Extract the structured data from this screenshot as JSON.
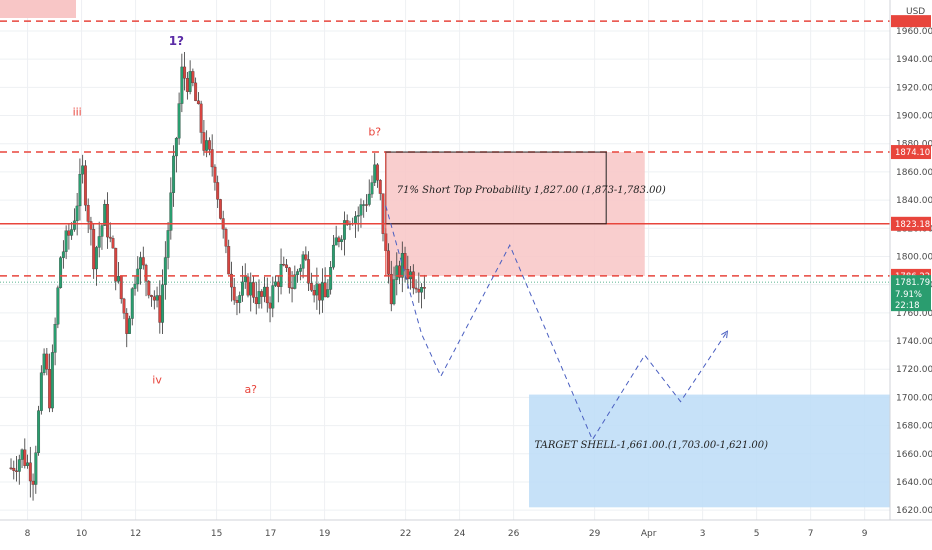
{
  "chart_data": {
    "type": "candlestick",
    "currency": "USD",
    "y_axis": {
      "ticks": [
        "1960.00",
        "1940.00",
        "1920.00",
        "1900.00",
        "1880.00",
        "1860.00",
        "1840.00",
        "1820.00",
        "1800.00",
        "1780.00",
        "1760.00",
        "1740.00",
        "1720.00",
        "1700.00",
        "1680.00",
        "1660.00",
        "1640.00",
        "1620.00"
      ],
      "ylim": [
        1613,
        1982
      ]
    },
    "x_axis": {
      "ticks": [
        {
          "label": "8",
          "pos": 3.0
        },
        {
          "label": "10",
          "pos": 12.8
        },
        {
          "label": "12",
          "pos": 22.6
        },
        {
          "label": "15",
          "pos": 37.3
        },
        {
          "label": "17",
          "pos": 47.1
        },
        {
          "label": "19",
          "pos": 56.9
        },
        {
          "label": "22",
          "pos": 71.6
        },
        {
          "label": "24",
          "pos": 81.4
        },
        {
          "label": "26",
          "pos": 91.2
        },
        {
          "label": "29",
          "pos": 105.9
        },
        {
          "label": "Apr",
          "pos": 115.7
        },
        {
          "label": "3",
          "pos": 125.5
        },
        {
          "label": "5",
          "pos": 135.3
        },
        {
          "label": "7",
          "pos": 145.1
        },
        {
          "label": "9",
          "pos": 154.9
        }
      ],
      "xlim": [
        -2,
        159.5
      ]
    },
    "price_key_points": [
      {
        "x": 0,
        "y": 1650
      },
      {
        "x": 2,
        "y": 1660
      },
      {
        "x": 4,
        "y": 1645
      },
      {
        "x": 6,
        "y": 1730
      },
      {
        "x": 7,
        "y": 1700
      },
      {
        "x": 9,
        "y": 1800
      },
      {
        "x": 11,
        "y": 1820
      },
      {
        "x": 13,
        "y": 1860
      },
      {
        "x": 15,
        "y": 1800
      },
      {
        "x": 17,
        "y": 1830
      },
      {
        "x": 19,
        "y": 1790
      },
      {
        "x": 21,
        "y": 1750
      },
      {
        "x": 23,
        "y": 1800
      },
      {
        "x": 25,
        "y": 1780
      },
      {
        "x": 27,
        "y": 1760
      },
      {
        "x": 29,
        "y": 1840
      },
      {
        "x": 31,
        "y": 1930
      },
      {
        "x": 33,
        "y": 1920
      },
      {
        "x": 35,
        "y": 1880
      },
      {
        "x": 37,
        "y": 1860
      },
      {
        "x": 39,
        "y": 1800
      },
      {
        "x": 41,
        "y": 1770
      },
      {
        "x": 43,
        "y": 1780
      },
      {
        "x": 45,
        "y": 1770
      },
      {
        "x": 47,
        "y": 1770
      },
      {
        "x": 49,
        "y": 1790
      },
      {
        "x": 51,
        "y": 1780
      },
      {
        "x": 53,
        "y": 1800
      },
      {
        "x": 55,
        "y": 1780
      },
      {
        "x": 57,
        "y": 1770
      },
      {
        "x": 59,
        "y": 1810
      },
      {
        "x": 61,
        "y": 1830
      },
      {
        "x": 63,
        "y": 1830
      },
      {
        "x": 65,
        "y": 1845
      },
      {
        "x": 66,
        "y": 1860
      },
      {
        "x": 67,
        "y": 1840
      },
      {
        "x": 68,
        "y": 1800
      },
      {
        "x": 69,
        "y": 1775
      },
      {
        "x": 71,
        "y": 1795
      },
      {
        "x": 73,
        "y": 1785
      },
      {
        "x": 75,
        "y": 1782
      }
    ],
    "current_price": "1781.79",
    "change_percent": "7.91%",
    "countdown": "22:18",
    "levels": [
      {
        "label": "1874.10",
        "value": 1874.1,
        "style": "dashed",
        "color": "#e8453c"
      },
      {
        "label": "1823.18",
        "value": 1823.18,
        "style": "solid",
        "color": "#e8453c"
      },
      {
        "label": "1786.22",
        "value": 1786.22,
        "style": "dashed",
        "color": "#e8453c"
      },
      {
        "label": "",
        "value": 1967,
        "style": "dashed",
        "color": "#e8453c"
      }
    ],
    "zones": [
      {
        "name": "short-zone",
        "x": [
          68,
          115
        ],
        "y": [
          1786.22,
          1874.1
        ],
        "color": "#f8c6c6"
      },
      {
        "name": "target-zone",
        "x": [
          94,
          159.5
        ],
        "y": [
          1622,
          1702
        ],
        "color": "#bcdcf7"
      }
    ],
    "projection_path": [
      {
        "x": 68,
        "y": 1836
      },
      {
        "x": 74.5,
        "y": 1745
      },
      {
        "x": 78,
        "y": 1715
      },
      {
        "x": 90.5,
        "y": 1808
      },
      {
        "x": 105.5,
        "y": 1670
      },
      {
        "x": 115,
        "y": 1730
      },
      {
        "x": 121.5,
        "y": 1697
      },
      {
        "x": 130,
        "y": 1747
      }
    ],
    "wave_labels": [
      {
        "text": "iii",
        "x": 12,
        "y": 1900,
        "color": "red"
      },
      {
        "text": "1?",
        "x": 30,
        "y": 1950,
        "color": "purple"
      },
      {
        "text": "iv",
        "x": 26.5,
        "y": 1710,
        "color": "red"
      },
      {
        "text": "a?",
        "x": 43.5,
        "y": 1703,
        "color": "red"
      },
      {
        "text": "b?",
        "x": 66,
        "y": 1886,
        "color": "red"
      }
    ],
    "annotations": [
      {
        "text": "71% Short Top Probability 1,827.00 (1,873-1,783.00)",
        "x": 70,
        "y": 1845
      },
      {
        "text": "TARGET SHELL-1,661.00.(1,703.00-1,621.00)",
        "x": 95,
        "y": 1664
      }
    ]
  }
}
